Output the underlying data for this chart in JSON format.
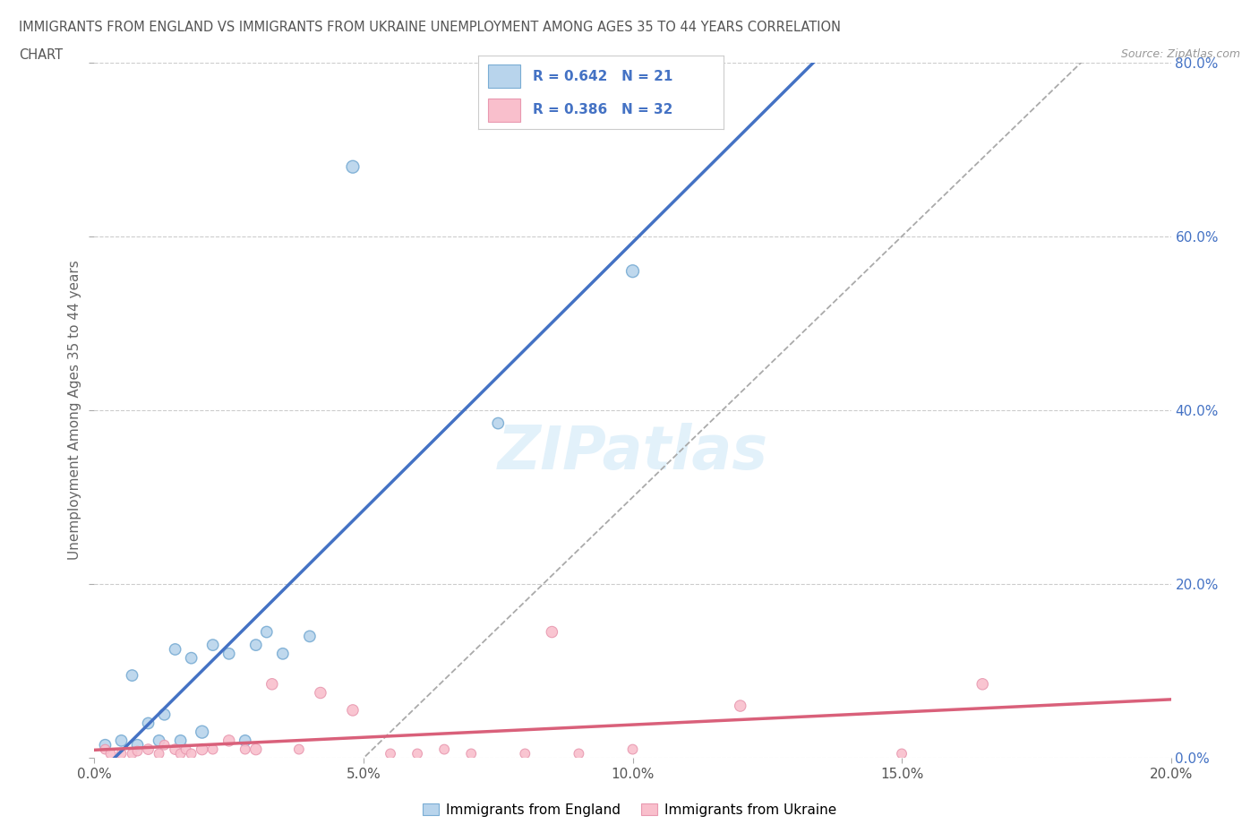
{
  "title_line1": "IMMIGRANTS FROM ENGLAND VS IMMIGRANTS FROM UKRAINE UNEMPLOYMENT AMONG AGES 35 TO 44 YEARS CORRELATION",
  "title_line2": "CHART",
  "source": "Source: ZipAtlas.com",
  "ylabel": "Unemployment Among Ages 35 to 44 years",
  "xlim": [
    0.0,
    0.2
  ],
  "ylim": [
    0.0,
    0.8
  ],
  "xticks": [
    0.0,
    0.05,
    0.1,
    0.15,
    0.2
  ],
  "yticks": [
    0.0,
    0.2,
    0.4,
    0.6,
    0.8
  ],
  "england_r": 0.642,
  "england_n": 21,
  "ukraine_r": 0.386,
  "ukraine_n": 32,
  "england_fill_color": "#b8d4ec",
  "ukraine_fill_color": "#f9bfcc",
  "england_edge_color": "#7aadd4",
  "ukraine_edge_color": "#e899b0",
  "england_line_color": "#4472c4",
  "ukraine_line_color": "#d9607a",
  "diagonal_color": "#aaaaaa",
  "legend_text_color": "#4472c4",
  "title_color": "#555555",
  "grid_color": "#cccccc",
  "background_color": "#ffffff",
  "tick_label_color": "#4472c4",
  "england_x": [
    0.002,
    0.005,
    0.007,
    0.008,
    0.01,
    0.012,
    0.013,
    0.015,
    0.016,
    0.018,
    0.02,
    0.022,
    0.025,
    0.028,
    0.03,
    0.032,
    0.035,
    0.04,
    0.048,
    0.075,
    0.1
  ],
  "england_y": [
    0.015,
    0.02,
    0.095,
    0.015,
    0.04,
    0.02,
    0.05,
    0.125,
    0.02,
    0.115,
    0.03,
    0.13,
    0.12,
    0.02,
    0.13,
    0.145,
    0.12,
    0.14,
    0.68,
    0.385,
    0.56
  ],
  "ukraine_x": [
    0.002,
    0.003,
    0.005,
    0.007,
    0.008,
    0.01,
    0.012,
    0.013,
    0.015,
    0.016,
    0.017,
    0.018,
    0.02,
    0.022,
    0.025,
    0.028,
    0.03,
    0.033,
    0.038,
    0.042,
    0.048,
    0.055,
    0.06,
    0.065,
    0.07,
    0.08,
    0.085,
    0.09,
    0.1,
    0.12,
    0.15,
    0.165
  ],
  "ukraine_y": [
    0.01,
    0.005,
    0.005,
    0.005,
    0.008,
    0.01,
    0.005,
    0.015,
    0.01,
    0.005,
    0.01,
    0.005,
    0.01,
    0.01,
    0.02,
    0.01,
    0.01,
    0.085,
    0.01,
    0.075,
    0.055,
    0.005,
    0.005,
    0.01,
    0.005,
    0.005,
    0.145,
    0.005,
    0.01,
    0.06,
    0.005,
    0.085
  ],
  "england_sizes": [
    80,
    80,
    80,
    80,
    80,
    80,
    80,
    80,
    80,
    80,
    100,
    80,
    80,
    80,
    80,
    80,
    80,
    80,
    100,
    80,
    100
  ],
  "ukraine_sizes": [
    60,
    60,
    60,
    60,
    60,
    70,
    60,
    60,
    70,
    60,
    60,
    60,
    80,
    60,
    80,
    60,
    80,
    80,
    60,
    80,
    80,
    60,
    60,
    60,
    60,
    60,
    80,
    60,
    60,
    80,
    60,
    80
  ],
  "legend_label_england": "Immigrants from England",
  "legend_label_ukraine": "Immigrants from Ukraine"
}
